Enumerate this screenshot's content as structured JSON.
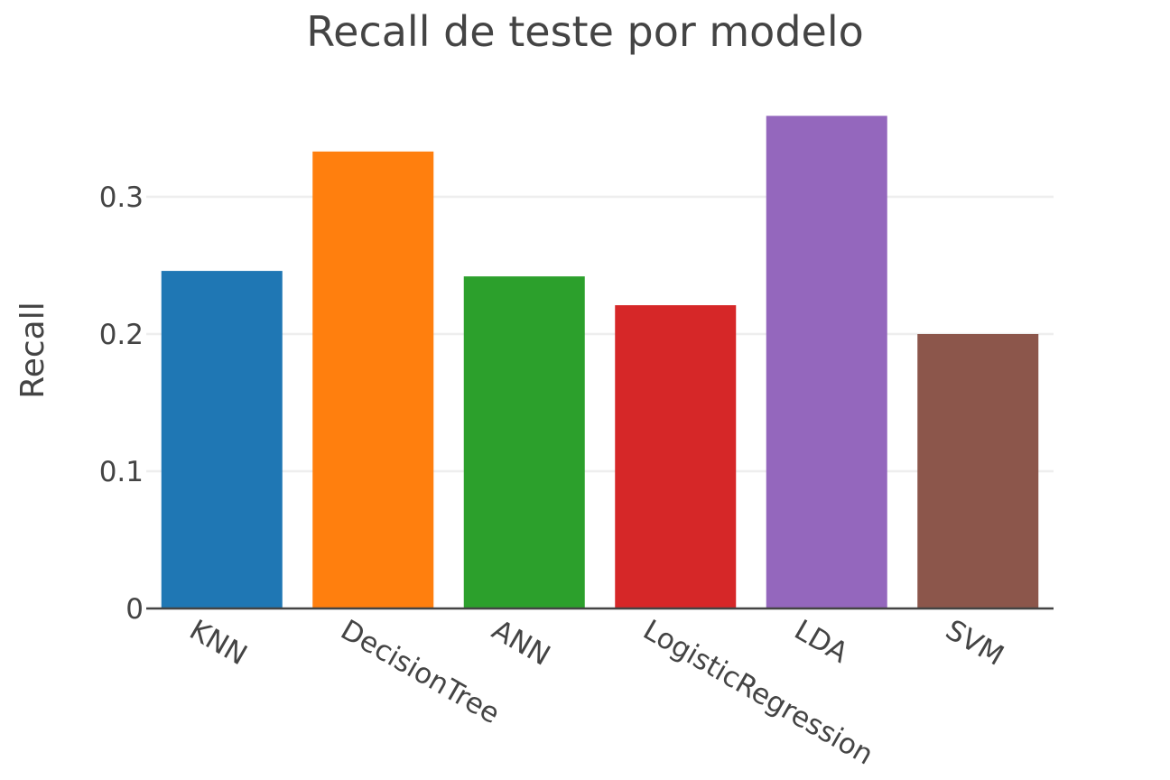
{
  "chart_data": {
    "type": "bar",
    "title": "Recall de teste por modelo",
    "xlabel": "",
    "ylabel": "Recall",
    "categories": [
      "KNN",
      "DecisionTree",
      "ANN",
      "LogisticRegression",
      "LDA",
      "SVM"
    ],
    "values": [
      0.246,
      0.333,
      0.242,
      0.221,
      0.359,
      0.2
    ],
    "colors": [
      "#1f77b4",
      "#ff7f0e",
      "#2ca02c",
      "#d62728",
      "#9467bd",
      "#8c564b"
    ],
    "ylim": [
      0,
      0.38
    ],
    "yticks": [
      0,
      0.1,
      0.2,
      0.3
    ],
    "ytick_labels": [
      "0",
      "0.1",
      "0.2",
      "0.3"
    ],
    "grid": true,
    "legend": "none"
  }
}
